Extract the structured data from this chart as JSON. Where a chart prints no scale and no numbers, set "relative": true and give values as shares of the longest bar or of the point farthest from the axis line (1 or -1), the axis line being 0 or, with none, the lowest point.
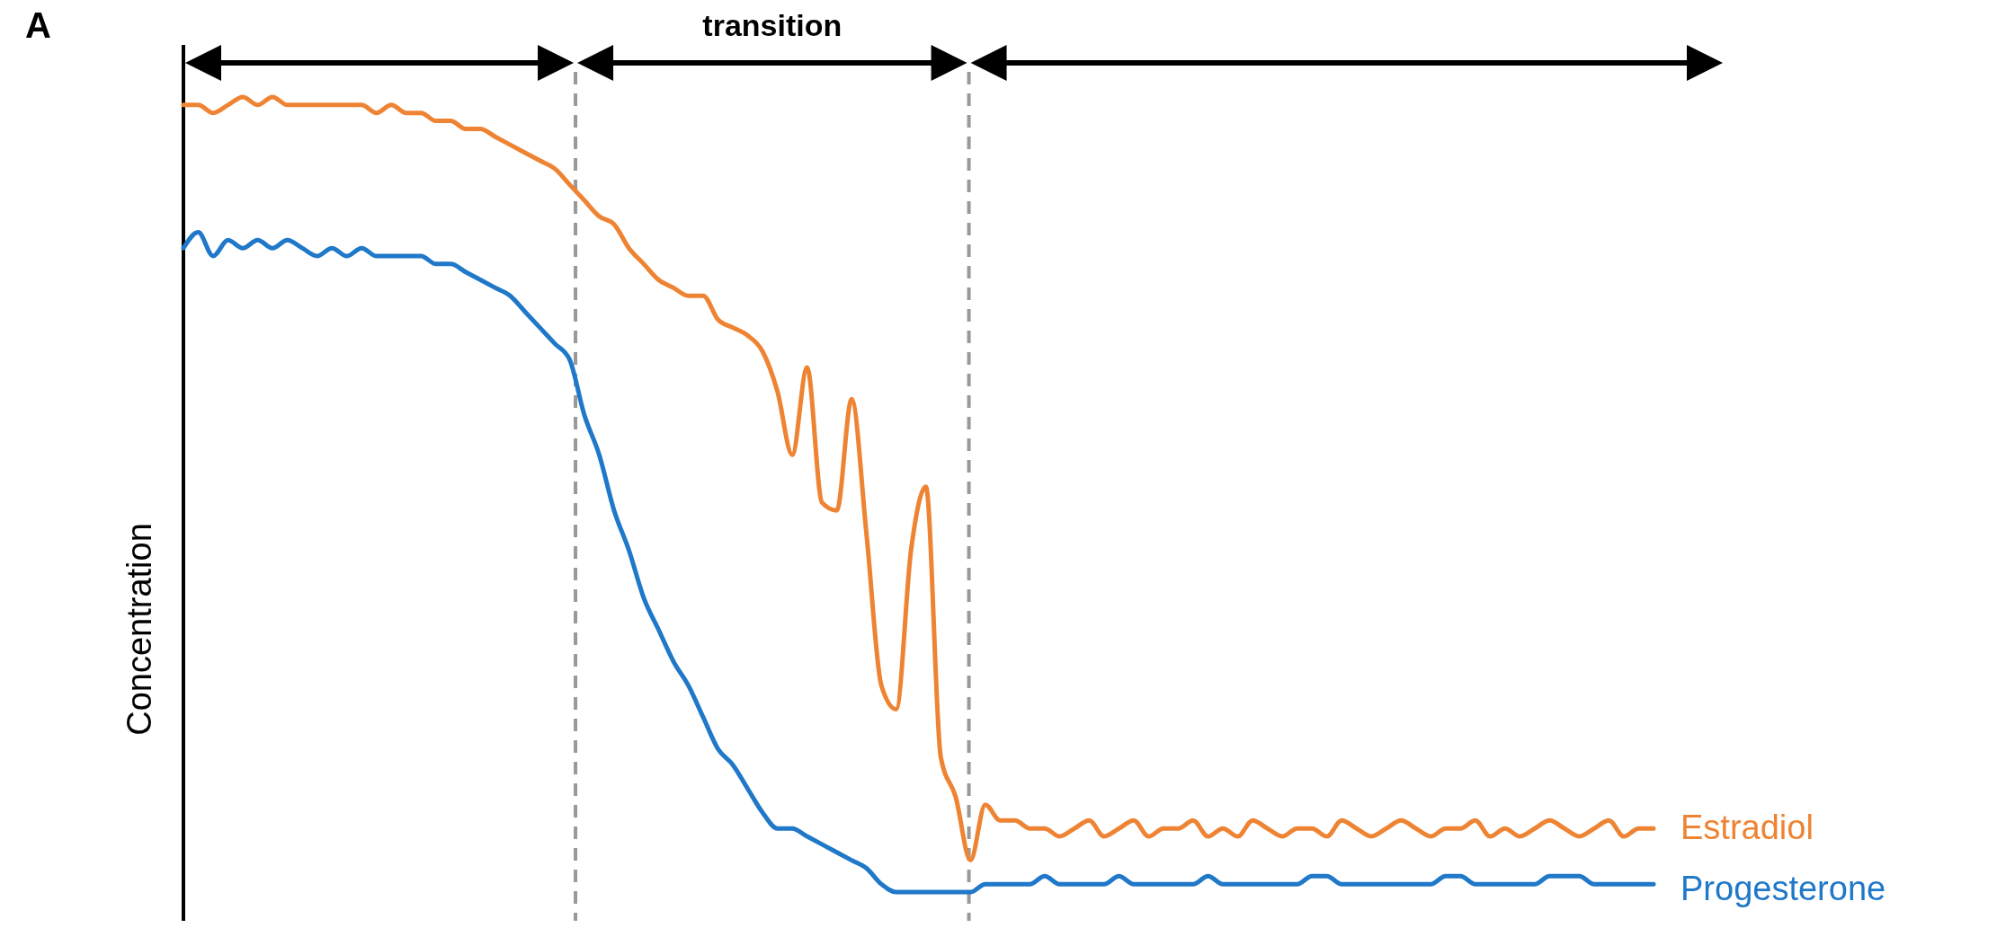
{
  "chart_data": {
    "type": "line",
    "relative": true,
    "ylabel": "Concentration",
    "line_style": "solid",
    "categories": [
      null,
      null,
      null,
      null,
      null,
      null,
      null,
      null,
      null,
      null,
      null,
      null,
      null,
      null,
      null,
      null,
      null,
      null,
      null,
      null,
      null,
      null,
      null,
      null,
      null,
      null,
      null,
      null,
      null,
      null,
      null,
      null,
      null,
      null,
      null,
      null,
      null,
      null,
      null,
      null,
      null,
      null,
      null,
      null,
      null,
      null,
      null,
      null,
      null,
      null,
      null,
      null,
      null,
      null,
      null,
      null,
      null,
      null,
      null,
      null,
      null,
      null,
      null,
      null,
      null,
      null,
      null,
      null,
      null,
      null,
      null,
      null,
      null,
      null,
      null,
      null,
      null,
      null,
      null,
      null,
      null,
      null,
      null,
      null,
      null,
      null,
      null,
      null,
      null,
      null,
      null,
      null,
      null,
      null,
      null,
      null,
      null,
      null,
      null,
      null
    ],
    "series": [
      {
        "name": "Estradiol",
        "color": "#ee8433",
        "values": [
          0.99,
          0.99,
          0.98,
          0.99,
          1.0,
          0.99,
          1.0,
          0.99,
          0.99,
          0.99,
          0.99,
          0.99,
          0.99,
          0.98,
          0.99,
          0.98,
          0.98,
          0.97,
          0.97,
          0.96,
          0.96,
          0.95,
          0.94,
          0.93,
          0.92,
          0.91,
          0.89,
          0.87,
          0.85,
          0.84,
          0.81,
          0.79,
          0.77,
          0.76,
          0.75,
          0.75,
          0.72,
          0.71,
          0.7,
          0.68,
          0.63,
          0.55,
          0.66,
          0.49,
          0.48,
          0.62,
          0.45,
          0.26,
          0.23,
          0.43,
          0.51,
          0.17,
          0.12,
          0.04,
          0.11,
          0.09,
          0.09,
          0.08,
          0.08,
          0.07,
          0.08,
          0.09,
          0.07,
          0.08,
          0.09,
          0.07,
          0.08,
          0.08,
          0.09,
          0.07,
          0.08,
          0.07,
          0.09,
          0.08,
          0.07,
          0.08,
          0.08,
          0.07,
          0.09,
          0.08,
          0.07,
          0.08,
          0.09,
          0.08,
          0.07,
          0.08,
          0.08,
          0.09,
          0.07,
          0.08,
          0.07,
          0.08,
          0.09,
          0.08,
          0.07,
          0.08,
          0.09,
          0.07,
          0.08,
          0.08
        ]
      },
      {
        "name": "Progesterone",
        "color": "#1f78c8",
        "values": [
          0.81,
          0.83,
          0.8,
          0.82,
          0.81,
          0.82,
          0.81,
          0.82,
          0.81,
          0.8,
          0.81,
          0.8,
          0.81,
          0.8,
          0.8,
          0.8,
          0.8,
          0.79,
          0.79,
          0.78,
          0.77,
          0.76,
          0.75,
          0.73,
          0.71,
          0.69,
          0.67,
          0.6,
          0.55,
          0.48,
          0.43,
          0.37,
          0.33,
          0.29,
          0.26,
          0.22,
          0.18,
          0.16,
          0.13,
          0.1,
          0.08,
          0.08,
          0.07,
          0.06,
          0.05,
          0.04,
          0.03,
          0.01,
          0.0,
          0.0,
          0.0,
          0.0,
          0.0,
          0.0,
          0.01,
          0.01,
          0.01,
          0.01,
          0.02,
          0.01,
          0.01,
          0.01,
          0.01,
          0.02,
          0.01,
          0.01,
          0.01,
          0.01,
          0.01,
          0.02,
          0.01,
          0.01,
          0.01,
          0.01,
          0.01,
          0.01,
          0.02,
          0.02,
          0.01,
          0.01,
          0.01,
          0.01,
          0.01,
          0.01,
          0.01,
          0.02,
          0.02,
          0.01,
          0.01,
          0.01,
          0.01,
          0.01,
          0.02,
          0.02,
          0.02,
          0.01,
          0.01,
          0.01,
          0.01,
          0.01
        ]
      }
    ],
    "annotations": [
      "A",
      "transition"
    ]
  }
}
